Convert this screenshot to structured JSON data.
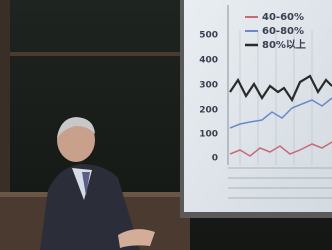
{
  "screen": {
    "axis_labels": [
      500,
      400,
      300,
      200,
      100,
      0
    ],
    "legend": [
      "40-60%",
      "60-80%",
      "80%以上"
    ]
  }
}
